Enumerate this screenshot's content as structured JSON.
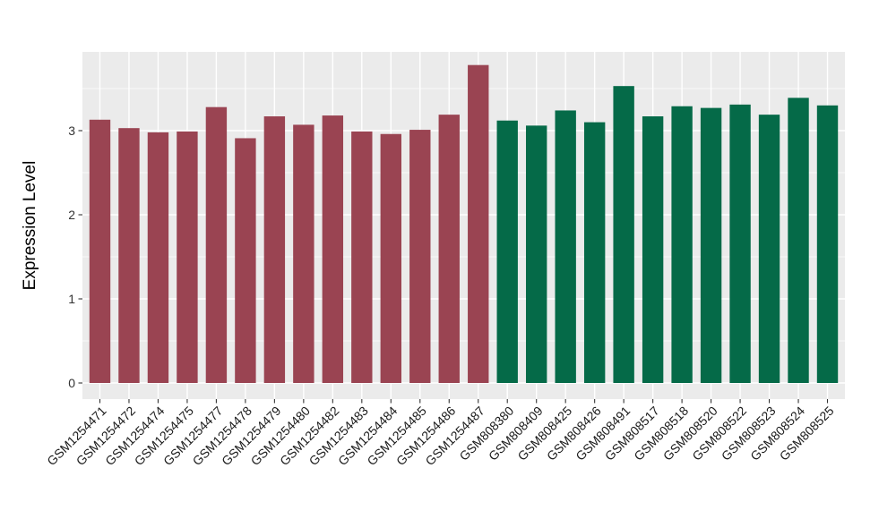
{
  "chart_data": {
    "type": "bar",
    "title": "",
    "xlabel": "",
    "ylabel": "Expression Level",
    "ylim": [
      0,
      3.94
    ],
    "yticks": [
      0,
      1,
      2,
      3
    ],
    "grid": "on",
    "legend": "none",
    "bars": [
      {
        "label": "GSM1254471",
        "value": 3.13,
        "group": "groupA"
      },
      {
        "label": "GSM1254472",
        "value": 3.03,
        "group": "groupA"
      },
      {
        "label": "GSM1254474",
        "value": 2.98,
        "group": "groupA"
      },
      {
        "label": "GSM1254475",
        "value": 2.99,
        "group": "groupA"
      },
      {
        "label": "GSM1254477",
        "value": 3.28,
        "group": "groupA"
      },
      {
        "label": "GSM1254478",
        "value": 2.91,
        "group": "groupA"
      },
      {
        "label": "GSM1254479",
        "value": 3.17,
        "group": "groupA"
      },
      {
        "label": "GSM1254480",
        "value": 3.07,
        "group": "groupA"
      },
      {
        "label": "GSM1254482",
        "value": 3.18,
        "group": "groupA"
      },
      {
        "label": "GSM1254483",
        "value": 2.99,
        "group": "groupA"
      },
      {
        "label": "GSM1254484",
        "value": 2.96,
        "group": "groupA"
      },
      {
        "label": "GSM1254485",
        "value": 3.01,
        "group": "groupA"
      },
      {
        "label": "GSM1254486",
        "value": 3.19,
        "group": "groupA"
      },
      {
        "label": "GSM1254487",
        "value": 3.78,
        "group": "groupA"
      },
      {
        "label": "GSM808380",
        "value": 3.12,
        "group": "groupB"
      },
      {
        "label": "GSM808409",
        "value": 3.06,
        "group": "groupB"
      },
      {
        "label": "GSM808425",
        "value": 3.24,
        "group": "groupB"
      },
      {
        "label": "GSM808426",
        "value": 3.1,
        "group": "groupB"
      },
      {
        "label": "GSM808491",
        "value": 3.53,
        "group": "groupB"
      },
      {
        "label": "GSM808517",
        "value": 3.17,
        "group": "groupB"
      },
      {
        "label": "GSM808518",
        "value": 3.29,
        "group": "groupB"
      },
      {
        "label": "GSM808520",
        "value": 3.27,
        "group": "groupB"
      },
      {
        "label": "GSM808522",
        "value": 3.31,
        "group": "groupB"
      },
      {
        "label": "GSM808523",
        "value": 3.19,
        "group": "groupB"
      },
      {
        "label": "GSM808524",
        "value": 3.39,
        "group": "groupB"
      },
      {
        "label": "GSM808525",
        "value": 3.3,
        "group": "groupB"
      }
    ],
    "group_colors": {
      "groupA": "#9A4452",
      "groupB": "#056A48"
    },
    "style": {
      "panel_background": "#EBEBEB",
      "gridline_color": "#FFFFFF",
      "tick_label_color": "#333333",
      "x_label_color": "#1A1A1A",
      "axis_title_color": "#000000",
      "tick_mark_color": "#333333"
    }
  }
}
